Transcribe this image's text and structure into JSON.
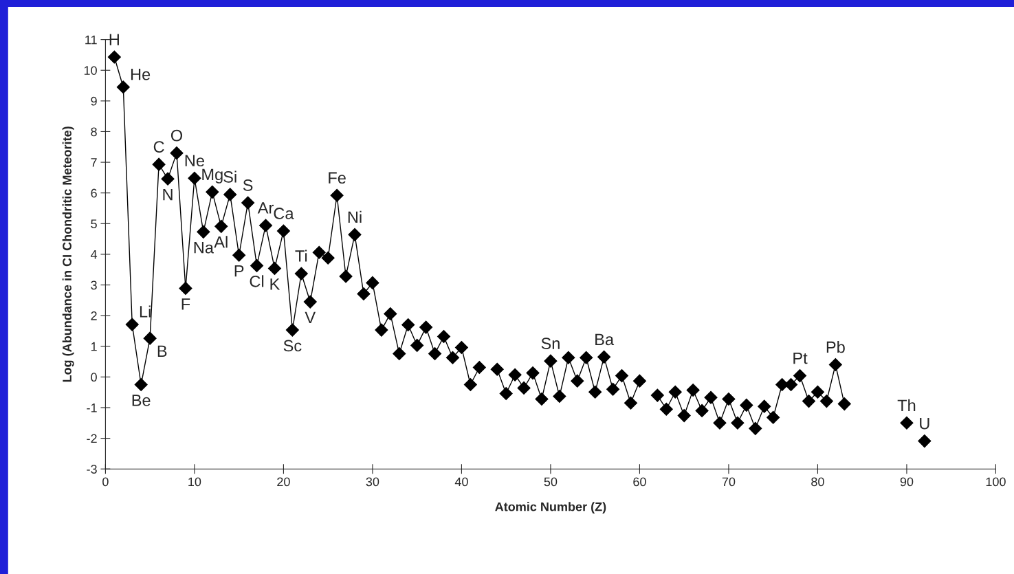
{
  "chart_data": {
    "type": "line",
    "xlabel": "Atomic Number (Z)",
    "ylabel": "Log (Abundance in CI Chondritic Meteorite)",
    "xlim": [
      0,
      100
    ],
    "xticks": [
      0,
      10,
      20,
      30,
      40,
      50,
      60,
      70,
      80,
      90,
      100
    ],
    "ylim": [
      -3,
      11
    ],
    "yticks": [
      -3,
      -2,
      -1,
      0,
      1,
      2,
      3,
      4,
      5,
      6,
      7,
      8,
      9,
      10,
      11
    ],
    "grid": false,
    "legend": false,
    "marker": "diamond",
    "line_style": "solid",
    "x": [
      1,
      2,
      3,
      4,
      5,
      6,
      7,
      8,
      9,
      10,
      11,
      12,
      13,
      14,
      15,
      16,
      17,
      18,
      19,
      20,
      21,
      22,
      23,
      24,
      25,
      26,
      27,
      28,
      29,
      30,
      31,
      32,
      33,
      34,
      35,
      36,
      37,
      38,
      39,
      40,
      41,
      42,
      43,
      44,
      45,
      46,
      47,
      48,
      49,
      50,
      51,
      52,
      53,
      54,
      55,
      56,
      57,
      58,
      59,
      60,
      61,
      62,
      63,
      64,
      65,
      66,
      67,
      68,
      69,
      70,
      71,
      72,
      73,
      74,
      75,
      76,
      77,
      78,
      79,
      80,
      81,
      82,
      83,
      84,
      85,
      86,
      87,
      88,
      89,
      90,
      91,
      92
    ],
    "series": [
      {
        "color": "#000000",
        "values": [
          10.43,
          9.45,
          1.71,
          -0.25,
          1.26,
          6.93,
          6.46,
          7.3,
          2.89,
          6.48,
          4.73,
          6.03,
          4.91,
          5.95,
          3.97,
          5.68,
          3.63,
          4.94,
          3.54,
          4.76,
          1.53,
          3.37,
          2.45,
          4.06,
          3.88,
          5.92,
          3.28,
          4.64,
          2.71,
          3.07,
          1.53,
          2.06,
          0.76,
          1.7,
          1.03,
          1.62,
          0.76,
          1.32,
          0.63,
          0.96,
          -0.25,
          0.31,
          null,
          0.25,
          -0.54,
          0.07,
          -0.36,
          0.13,
          -0.72,
          0.52,
          -0.63,
          0.63,
          -0.13,
          0.63,
          -0.49,
          0.65,
          -0.4,
          0.04,
          -0.85,
          -0.13,
          null,
          -0.6,
          -1.05,
          -0.49,
          -1.26,
          -0.43,
          -1.1,
          -0.67,
          -1.5,
          -0.72,
          -1.5,
          -0.92,
          -1.68,
          -0.96,
          -1.32,
          -0.25,
          -0.25,
          0.04,
          -0.79,
          -0.49,
          -0.79,
          0.4,
          -0.88,
          null,
          null,
          null,
          null,
          null,
          null,
          -1.5,
          null,
          -2.09
        ]
      }
    ],
    "annotations": [
      {
        "text": "H",
        "x": 1,
        "y": 10.43
      },
      {
        "text": "He",
        "x": 2,
        "y": 9.45
      },
      {
        "text": "Li",
        "x": 3,
        "y": 1.71
      },
      {
        "text": "Be",
        "x": 4,
        "y": -0.25
      },
      {
        "text": "B",
        "x": 5,
        "y": 1.26
      },
      {
        "text": "C",
        "x": 6,
        "y": 6.93
      },
      {
        "text": "N",
        "x": 7,
        "y": 6.46
      },
      {
        "text": "O",
        "x": 8,
        "y": 7.3
      },
      {
        "text": "F",
        "x": 9,
        "y": 2.89
      },
      {
        "text": "Ne",
        "x": 10,
        "y": 6.48
      },
      {
        "text": "Na",
        "x": 11,
        "y": 4.73
      },
      {
        "text": "Mg",
        "x": 12,
        "y": 6.03
      },
      {
        "text": "Al",
        "x": 13,
        "y": 4.91
      },
      {
        "text": "Si",
        "x": 14,
        "y": 5.95
      },
      {
        "text": "P",
        "x": 15,
        "y": 3.97
      },
      {
        "text": "S",
        "x": 16,
        "y": 5.68
      },
      {
        "text": "Cl",
        "x": 17,
        "y": 3.63
      },
      {
        "text": "Ar",
        "x": 18,
        "y": 4.94
      },
      {
        "text": "K",
        "x": 19,
        "y": 3.54
      },
      {
        "text": "Ca",
        "x": 20,
        "y": 4.76
      },
      {
        "text": "Sc",
        "x": 21,
        "y": 1.53
      },
      {
        "text": "Ti",
        "x": 22,
        "y": 3.37
      },
      {
        "text": "V",
        "x": 23,
        "y": 2.45
      },
      {
        "text": "Fe",
        "x": 26,
        "y": 5.92
      },
      {
        "text": "Ni",
        "x": 28,
        "y": 4.64
      },
      {
        "text": "Sn",
        "x": 50,
        "y": 0.52
      },
      {
        "text": "Ba",
        "x": 56,
        "y": 0.65
      },
      {
        "text": "Pt",
        "x": 78,
        "y": 0.04
      },
      {
        "text": "Pb",
        "x": 82,
        "y": 0.4
      },
      {
        "text": "Th",
        "x": 90,
        "y": -1.5
      },
      {
        "text": "U",
        "x": 92,
        "y": -2.09
      }
    ]
  }
}
